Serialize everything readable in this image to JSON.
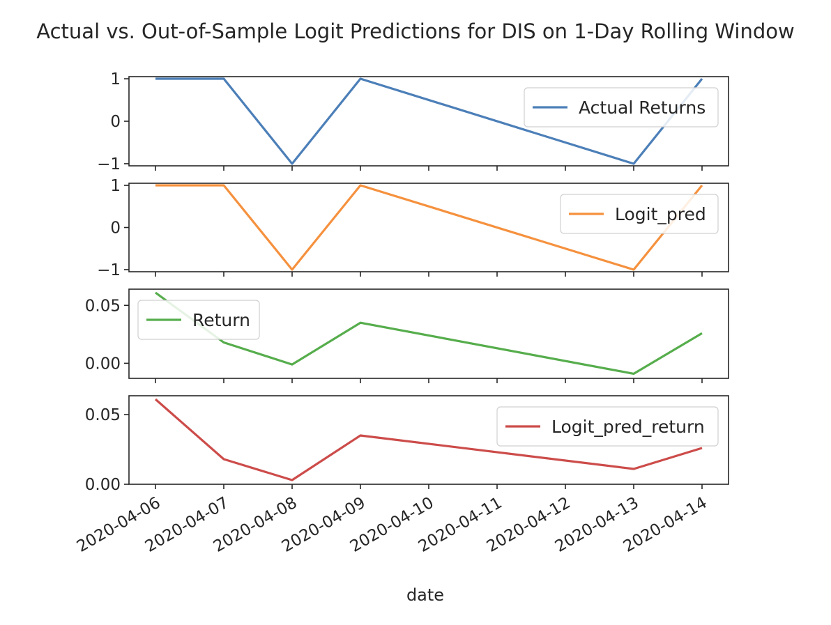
{
  "chart_data": {
    "type": "line",
    "title": "Actual vs. Out-of-Sample Logit Predictions for DIS on 1-Day Rolling Window",
    "xlabel": "date",
    "x": [
      "2020-04-06",
      "2020-04-07",
      "2020-04-08",
      "2020-04-09",
      "2020-04-10",
      "2020-04-11",
      "2020-04-12",
      "2020-04-13",
      "2020-04-14"
    ],
    "xlim": [
      "2020-04-06",
      "2020-04-14"
    ],
    "grid": false,
    "subplots": [
      {
        "series": [
          {
            "name": "Actual Returns",
            "color": "#4c7fb8",
            "points": [
              [
                "2020-04-06",
                1
              ],
              [
                "2020-04-07",
                1
              ],
              [
                "2020-04-08",
                -1
              ],
              [
                "2020-04-09",
                1
              ],
              [
                "2020-04-13",
                -1
              ],
              [
                "2020-04-14",
                1
              ]
            ]
          }
        ],
        "ylim": [
          -1.05,
          1.05
        ],
        "yticks": [
          {
            "value": 1,
            "label": "1"
          },
          {
            "value": 0,
            "label": "0"
          },
          {
            "value": -1,
            "label": "−1"
          }
        ],
        "legend": "upper right"
      },
      {
        "series": [
          {
            "name": "Logit_pred",
            "color": "#f5913e",
            "points": [
              [
                "2020-04-06",
                1
              ],
              [
                "2020-04-07",
                1
              ],
              [
                "2020-04-08",
                -1
              ],
              [
                "2020-04-09",
                1
              ],
              [
                "2020-04-13",
                -1
              ],
              [
                "2020-04-14",
                1
              ]
            ]
          }
        ],
        "ylim": [
          -1.05,
          1.05
        ],
        "yticks": [
          {
            "value": 1,
            "label": "1"
          },
          {
            "value": 0,
            "label": "0"
          },
          {
            "value": -1,
            "label": "−1"
          }
        ],
        "legend": "upper right"
      },
      {
        "series": [
          {
            "name": "Return",
            "color": "#56ad4c",
            "points": [
              [
                "2020-04-06",
                0.061
              ],
              [
                "2020-04-07",
                0.018
              ],
              [
                "2020-04-08",
                -0.001
              ],
              [
                "2020-04-09",
                0.035
              ],
              [
                "2020-04-13",
                -0.009
              ],
              [
                "2020-04-14",
                0.026
              ]
            ]
          }
        ],
        "ylim": [
          -0.013,
          0.064
        ],
        "yticks": [
          {
            "value": 0.05,
            "label": "0.05"
          },
          {
            "value": 0.0,
            "label": "0.00"
          }
        ],
        "legend": "upper left"
      },
      {
        "series": [
          {
            "name": "Logit_pred_return",
            "color": "#cc4c4a",
            "points": [
              [
                "2020-04-06",
                0.061
              ],
              [
                "2020-04-07",
                0.018
              ],
              [
                "2020-04-08",
                0.003
              ],
              [
                "2020-04-09",
                0.035
              ],
              [
                "2020-04-13",
                0.011
              ],
              [
                "2020-04-14",
                0.026
              ]
            ]
          }
        ],
        "ylim": [
          0.0,
          0.0635
        ],
        "yticks": [
          {
            "value": 0.05,
            "label": "0.05"
          },
          {
            "value": 0.0,
            "label": "0.00"
          }
        ],
        "legend": "upper right"
      }
    ]
  }
}
